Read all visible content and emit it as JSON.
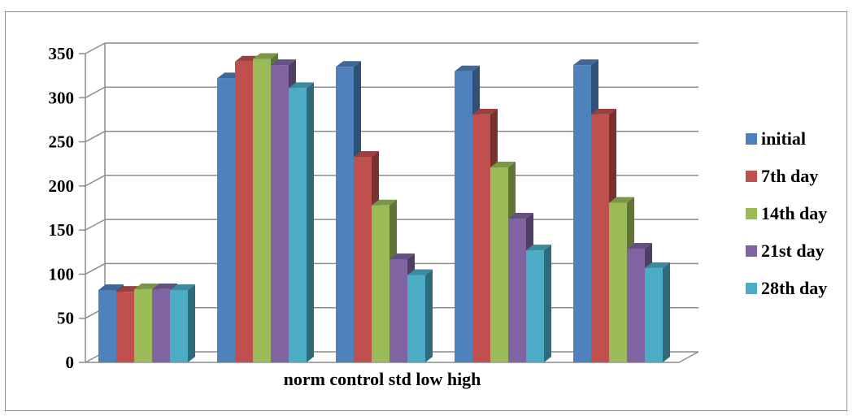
{
  "chart_data": {
    "type": "bar",
    "style": "3d-clustered-column",
    "title": "",
    "xlabel": "norm control std low high",
    "ylabel": "",
    "categories": [
      "",
      "",
      "",
      "",
      ""
    ],
    "ylim": [
      0,
      350
    ],
    "yticks": [
      0,
      50,
      100,
      150,
      200,
      250,
      300,
      350
    ],
    "grid": true,
    "legend_position": "right",
    "series": [
      {
        "name": "initial",
        "color": "#4F81BD",
        "values": [
          82,
          322,
          335,
          330,
          337
        ]
      },
      {
        "name": "7th day",
        "color": "#C0504D",
        "values": [
          80,
          341,
          233,
          281,
          281
        ]
      },
      {
        "name": "14th day",
        "color": "#9BBB59",
        "values": [
          83,
          344,
          178,
          221,
          181
        ]
      },
      {
        "name": "21st day",
        "color": "#8064A2",
        "values": [
          83,
          337,
          117,
          163,
          129
        ]
      },
      {
        "name": "28th day",
        "color": "#4BACC6",
        "values": [
          82,
          311,
          99,
          127,
          107
        ]
      }
    ]
  }
}
